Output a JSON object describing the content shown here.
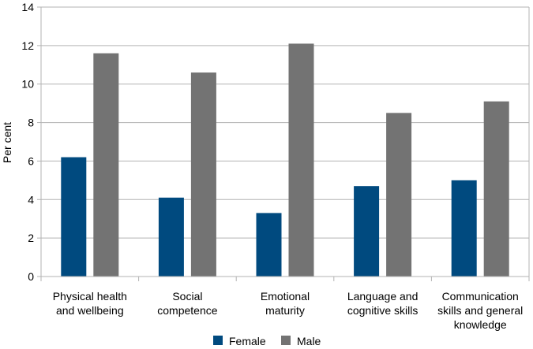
{
  "chart_data": {
    "type": "bar",
    "title": "",
    "xlabel": "",
    "ylabel": "Per cent",
    "ylim": [
      0,
      14
    ],
    "yticks": [
      0,
      2,
      4,
      6,
      8,
      10,
      12,
      14
    ],
    "grid": true,
    "legend_position": "bottom-center",
    "categories": [
      [
        "Physical health",
        "and wellbeing"
      ],
      [
        "Social",
        "competence"
      ],
      [
        "Emotional",
        "maturity"
      ],
      [
        "Language and",
        "cognitive skills"
      ],
      [
        "Communication",
        "skills and general",
        "knowledge"
      ]
    ],
    "series": [
      {
        "name": "Female",
        "color": "#004a7f",
        "values": [
          6.2,
          4.1,
          3.3,
          4.7,
          5.0
        ]
      },
      {
        "name": "Male",
        "color": "#737373",
        "values": [
          11.6,
          10.6,
          12.1,
          8.5,
          9.1
        ]
      }
    ]
  }
}
